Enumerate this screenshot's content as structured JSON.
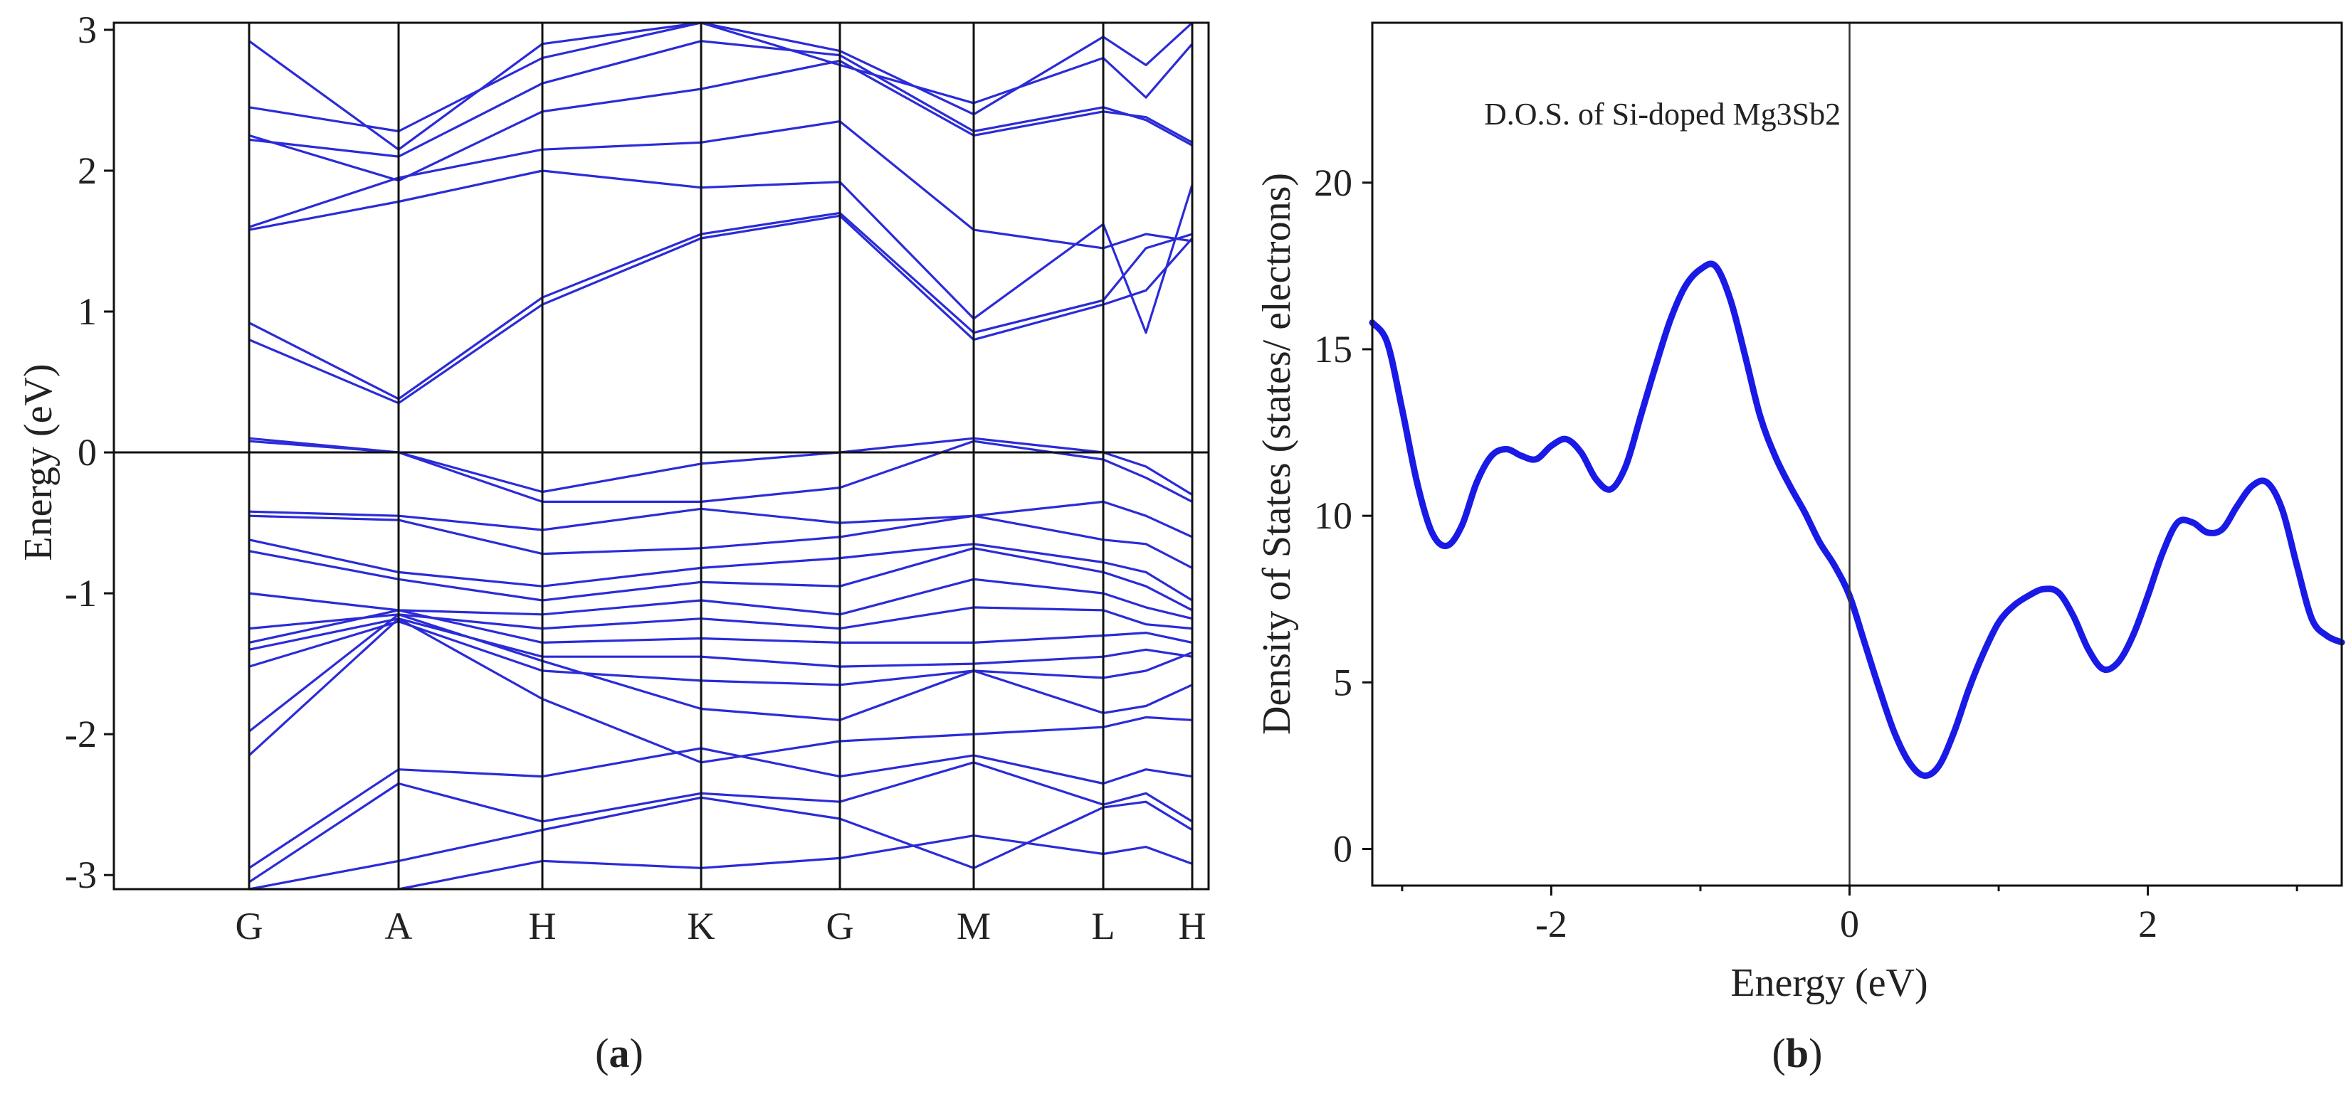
{
  "colors": {
    "band": "#2b2bd8",
    "dos": "#1a1ae6",
    "axis": "#111111"
  },
  "chart_data": [
    {
      "panel": "a",
      "type": "line",
      "caption_open": "(",
      "caption_letter": "a",
      "caption_close": ")",
      "ylabel": "Energy (eV)",
      "xlabel": "",
      "ylim": [
        -3.1,
        3.05
      ],
      "yticks": [
        3,
        2,
        1,
        0,
        -1,
        -2,
        -3
      ],
      "ytick_labels": [
        "3",
        "2",
        "1",
        "0",
        "-1",
        "-2",
        "-3"
      ],
      "kpoints": [
        "G",
        "A",
        "H",
        "K",
        "G",
        "M",
        "L",
        "H"
      ],
      "fermi_level": 0,
      "series": [
        {
          "name": "cb1",
          "values": [
            0.8,
            0.35,
            1.05,
            1.52,
            1.68,
            0.8,
            1.05,
            1.15,
            1.52
          ]
        },
        {
          "name": "cb2",
          "values": [
            0.92,
            0.38,
            1.1,
            1.55,
            1.7,
            0.85,
            1.08,
            1.45,
            1.55
          ]
        },
        {
          "name": "cb3",
          "values": [
            1.58,
            1.78,
            2.0,
            1.88,
            1.92,
            0.95,
            1.62,
            0.85,
            1.9
          ]
        },
        {
          "name": "cb4",
          "values": [
            1.6,
            1.95,
            2.15,
            2.2,
            2.35,
            1.58,
            1.45,
            1.55,
            1.5
          ]
        },
        {
          "name": "cb5",
          "values": [
            2.25,
            1.93,
            2.42,
            2.58,
            2.78,
            2.25,
            2.42,
            2.38,
            2.2
          ]
        },
        {
          "name": "cb6",
          "values": [
            2.22,
            2.1,
            2.62,
            2.92,
            2.82,
            2.28,
            2.45,
            2.36,
            2.18
          ]
        },
        {
          "name": "cb7",
          "values": [
            2.45,
            2.28,
            2.8,
            3.05,
            2.75,
            2.48,
            2.8,
            2.52,
            2.9
          ]
        },
        {
          "name": "cb8",
          "values": [
            2.92,
            2.15,
            2.9,
            3.1,
            2.85,
            2.4,
            2.95,
            2.75,
            3.05
          ]
        },
        {
          "name": "vb1",
          "values": [
            0.1,
            0.0,
            -0.28,
            -0.08,
            0.0,
            0.1,
            0.0,
            -0.1,
            -0.3
          ]
        },
        {
          "name": "vb2",
          "values": [
            0.08,
            0.0,
            -0.35,
            -0.35,
            -0.25,
            0.08,
            -0.05,
            -0.18,
            -0.35
          ]
        },
        {
          "name": "vb3",
          "values": [
            -0.42,
            -0.45,
            -0.55,
            -0.4,
            -0.5,
            -0.45,
            -0.35,
            -0.45,
            -0.6
          ]
        },
        {
          "name": "vb4",
          "values": [
            -0.45,
            -0.48,
            -0.72,
            -0.68,
            -0.6,
            -0.45,
            -0.62,
            -0.65,
            -0.82
          ]
        },
        {
          "name": "vb5",
          "values": [
            -0.62,
            -0.85,
            -0.95,
            -0.82,
            -0.75,
            -0.65,
            -0.78,
            -0.85,
            -1.05
          ]
        },
        {
          "name": "vb6",
          "values": [
            -0.7,
            -0.9,
            -1.05,
            -0.92,
            -0.95,
            -0.68,
            -0.85,
            -0.95,
            -1.12
          ]
        },
        {
          "name": "vb7",
          "values": [
            -1.0,
            -1.12,
            -1.15,
            -1.05,
            -1.15,
            -0.9,
            -1.0,
            -1.1,
            -1.18
          ]
        },
        {
          "name": "vb8",
          "values": [
            -1.25,
            -1.15,
            -1.25,
            -1.18,
            -1.25,
            -1.1,
            -1.12,
            -1.22,
            -1.25
          ]
        },
        {
          "name": "vb9",
          "values": [
            -1.35,
            -1.12,
            -1.35,
            -1.32,
            -1.35,
            -1.35,
            -1.3,
            -1.28,
            -1.35
          ]
        },
        {
          "name": "vb10",
          "values": [
            -1.4,
            -1.18,
            -1.45,
            -1.45,
            -1.52,
            -1.5,
            -1.45,
            -1.4,
            -1.45
          ]
        },
        {
          "name": "vb11",
          "values": [
            -1.52,
            -1.2,
            -1.55,
            -1.62,
            -1.65,
            -1.55,
            -1.6,
            -1.55,
            -1.42
          ]
        },
        {
          "name": "vb12",
          "values": [
            -1.98,
            -1.15,
            -1.48,
            -1.82,
            -1.9,
            -1.55,
            -1.85,
            -1.8,
            -1.65
          ]
        },
        {
          "name": "vb13",
          "values": [
            -2.15,
            -1.18,
            -1.75,
            -2.2,
            -2.05,
            -2.0,
            -1.95,
            -1.88,
            -1.9
          ]
        },
        {
          "name": "vb14",
          "values": [
            -2.95,
            -2.25,
            -2.3,
            -2.1,
            -2.3,
            -2.15,
            -2.35,
            -2.25,
            -2.3
          ]
        },
        {
          "name": "vb15",
          "values": [
            -3.05,
            -2.35,
            -2.62,
            -2.42,
            -2.48,
            -2.2,
            -2.5,
            -2.42,
            -2.62
          ]
        },
        {
          "name": "vb16",
          "values": [
            -3.1,
            -2.9,
            -2.68,
            -2.45,
            -2.6,
            -2.95,
            -2.52,
            -2.48,
            -2.68
          ]
        },
        {
          "name": "vb17",
          "values": [
            -3.1,
            -3.1,
            -2.9,
            -2.95,
            -2.88,
            -2.72,
            -2.85,
            -2.8,
            -2.92
          ]
        }
      ]
    },
    {
      "panel": "b",
      "type": "line",
      "caption_open": "(",
      "caption_letter": "b",
      "caption_close": ")",
      "title": "D.O.S. of Si-doped Mg3Sb2",
      "xlabel": "Energy (eV)",
      "ylabel": "Density of States (states/ electrons)",
      "xlim": [
        -3.2,
        3.3
      ],
      "ylim": [
        -1.1,
        24.8
      ],
      "xticks": [
        -2,
        0,
        2
      ],
      "xtick_labels": [
        "-2",
        "0",
        "2"
      ],
      "yticks": [
        0,
        5,
        10,
        15,
        20
      ],
      "ytick_labels": [
        "0",
        "5",
        "10",
        "15",
        "20"
      ],
      "vline_at": 0,
      "series": [
        {
          "name": "DOS",
          "x": [
            -3.2,
            -3.1,
            -3.0,
            -2.9,
            -2.8,
            -2.7,
            -2.6,
            -2.5,
            -2.4,
            -2.3,
            -2.2,
            -2.1,
            -2.0,
            -1.9,
            -1.8,
            -1.7,
            -1.6,
            -1.5,
            -1.4,
            -1.3,
            -1.2,
            -1.1,
            -1.0,
            -0.9,
            -0.8,
            -0.7,
            -0.6,
            -0.5,
            -0.4,
            -0.3,
            -0.2,
            -0.1,
            0.0,
            0.1,
            0.2,
            0.3,
            0.4,
            0.5,
            0.6,
            0.7,
            0.8,
            0.9,
            1.0,
            1.1,
            1.2,
            1.3,
            1.4,
            1.5,
            1.6,
            1.7,
            1.8,
            1.9,
            2.0,
            2.1,
            2.2,
            2.3,
            2.4,
            2.5,
            2.6,
            2.7,
            2.8,
            2.9,
            3.0,
            3.1,
            3.2,
            3.3
          ],
          "y": [
            15.8,
            15.2,
            13.2,
            11.0,
            9.5,
            9.1,
            9.7,
            11.0,
            11.8,
            12.0,
            11.8,
            11.7,
            12.1,
            12.3,
            11.9,
            11.1,
            10.8,
            11.5,
            13.0,
            14.5,
            15.9,
            16.9,
            17.4,
            17.5,
            16.5,
            14.8,
            13.0,
            11.8,
            10.9,
            10.1,
            9.2,
            8.5,
            7.6,
            6.2,
            4.8,
            3.5,
            2.6,
            2.2,
            2.5,
            3.5,
            4.8,
            5.9,
            6.8,
            7.3,
            7.6,
            7.8,
            7.7,
            7.0,
            6.0,
            5.4,
            5.6,
            6.4,
            7.6,
            8.9,
            9.8,
            9.8,
            9.5,
            9.6,
            10.3,
            10.9,
            11.0,
            10.2,
            8.5,
            6.9,
            6.4,
            6.2
          ]
        }
      ]
    }
  ]
}
